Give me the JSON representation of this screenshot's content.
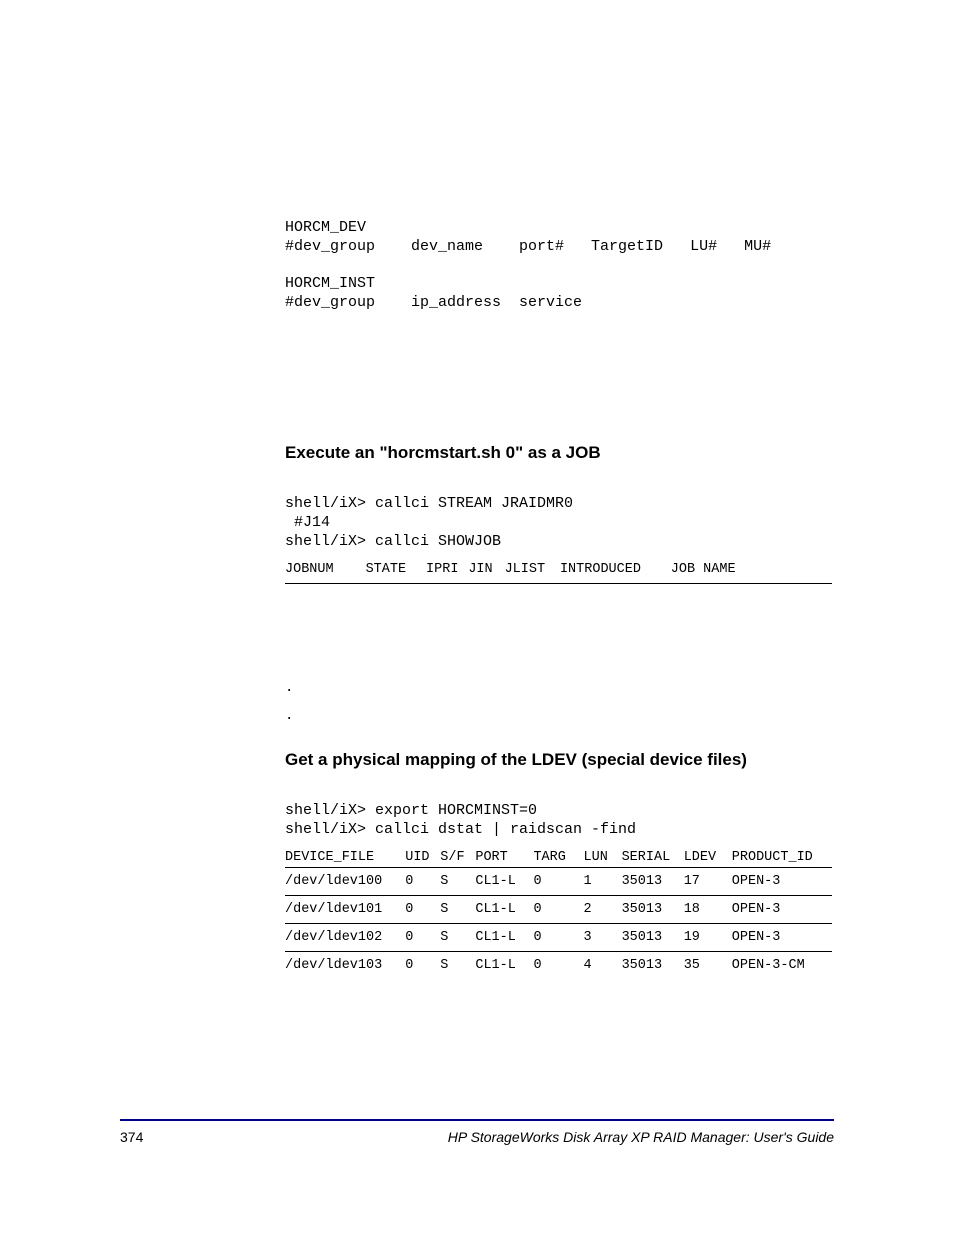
{
  "block1": {
    "line1": "HORCM_DEV",
    "line2": "#dev_group    dev_name    port#   TargetID   LU#   MU#",
    "line3": "HORCM_INST",
    "line4": "#dev_group    ip_address  service"
  },
  "section2": {
    "heading": "Execute an \"horcmstart.sh 0\" as a JOB",
    "cmd1": "shell/iX> callci STREAM JRAIDMR0",
    "cmd2": " #J14",
    "cmd3": "shell/iX> callci SHOWJOB",
    "table_header": {
      "c1": "JOBNUM",
      "c2": "STATE",
      "c3": "IPRI",
      "c4": "JIN",
      "c5": "JLIST",
      "c6": "INTRODUCED",
      "c7": "JOB NAME"
    }
  },
  "dots": {
    "d1": ".",
    "d2": "."
  },
  "section3": {
    "heading": "Get a physical mapping of the LDEV (special device files)",
    "cmd1": "shell/iX> export HORCMINST=0",
    "cmd2": "shell/iX> callci dstat | raidscan -find",
    "headers": {
      "c1": "DEVICE_FILE",
      "c2": "UID",
      "c3": "S/F",
      "c4": "PORT",
      "c5": "TARG",
      "c6": "LUN",
      "c7": "SERIAL",
      "c8": "LDEV",
      "c9": "PRODUCT_ID"
    },
    "rows": [
      {
        "c1": "/dev/ldev100",
        "c2": "0",
        "c3": "S",
        "c4": "CL1-L",
        "c5": "0",
        "c6": "1",
        "c7": "35013",
        "c8": "17",
        "c9": "OPEN-3"
      },
      {
        "c1": "/dev/ldev101",
        "c2": "0",
        "c3": "S",
        "c4": "CL1-L",
        "c5": "0",
        "c6": "2",
        "c7": "35013",
        "c8": "18",
        "c9": "OPEN-3"
      },
      {
        "c1": "/dev/ldev102",
        "c2": "0",
        "c3": "S",
        "c4": "CL1-L",
        "c5": "0",
        "c6": "3",
        "c7": "35013",
        "c8": "19",
        "c9": "OPEN-3"
      },
      {
        "c1": "/dev/ldev103",
        "c2": "0",
        "c3": "S",
        "c4": "CL1-L",
        "c5": "0",
        "c6": "4",
        "c7": "35013",
        "c8": "35",
        "c9": "OPEN-3-CM"
      }
    ]
  },
  "footer": {
    "pagenum": "374",
    "title": "HP StorageWorks Disk Array XP RAID Manager: User's Guide"
  },
  "colwidths_job": {
    "c1": "80",
    "c2": "60",
    "c3": "42",
    "c4": "36",
    "c5": "55",
    "c6": "110",
    "c7": "160"
  },
  "colwidths_dev": {
    "c1": "120",
    "c2": "35",
    "c3": "35",
    "c4": "58",
    "c5": "50",
    "c6": "38",
    "c7": "62",
    "c8": "48",
    "c9": "100"
  }
}
